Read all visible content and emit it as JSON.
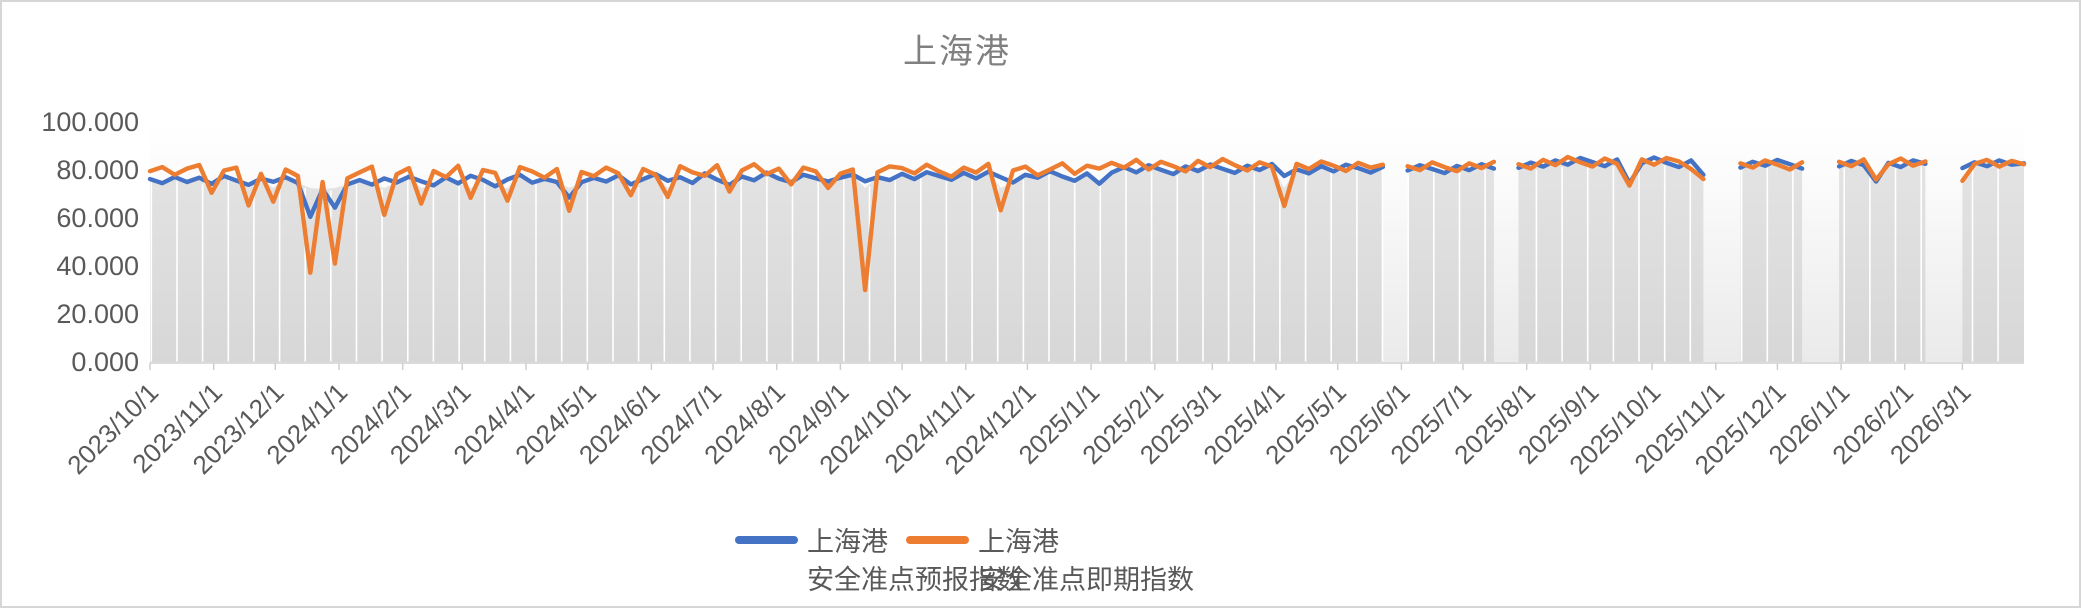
{
  "title": "上海港",
  "colors": {
    "series_forecast": "#4472C4",
    "series_spot": "#ED7D31",
    "area_top": "#E3E3E3",
    "area_bottom": "#D7D7D7",
    "plot_bg_top": "#FFFFFF",
    "plot_bg_bottom": "#EAEAEA",
    "axis_text": "#595959",
    "title_text": "#808080",
    "axis_line": "#CFCFCF",
    "gridline": "#FFFFFF"
  },
  "legend": [
    {
      "label_line1": "上海港",
      "label_line2": "安全准点预报指数",
      "color": "#4472C4"
    },
    {
      "label_line1": "上海港",
      "label_line2": "安全准点即期指数",
      "color": "#ED7D31"
    }
  ],
  "chart_data": {
    "type": "line",
    "title": "上海港",
    "xlabel": "",
    "ylabel": "",
    "ylim": [
      0,
      100
    ],
    "grid": "vertical-white-on-area",
    "legend_position": "bottom-center",
    "y_tick_values": [
      0,
      20,
      40,
      60,
      80,
      100
    ],
    "y_tick_labels": [
      "0.000",
      "20.000",
      "40.000",
      "60.000",
      "80.000",
      "100.000"
    ],
    "x_start_date": "2023/10/1",
    "x_total_days": 912,
    "x_step_days": 6,
    "x_tick_labels": [
      "2023/10/1",
      "2023/11/1",
      "2023/12/1",
      "2024/1/1",
      "2024/2/1",
      "2024/3/1",
      "2024/4/1",
      "2024/5/1",
      "2024/6/1",
      "2024/7/1",
      "2024/8/1",
      "2024/9/1",
      "2024/10/1",
      "2024/11/1",
      "2024/12/1",
      "2025/1/1",
      "2025/2/1",
      "2025/3/1",
      "2025/4/1",
      "2025/5/1",
      "2025/6/1",
      "2025/7/1",
      "2025/8/1",
      "2025/9/1",
      "2025/10/1",
      "2025/11/1",
      "2025/12/1",
      "2026/1/1",
      "2026/2/1",
      "2026/3/1"
    ],
    "x_tick_day_offsets": [
      0,
      31,
      61,
      92,
      123,
      152,
      183,
      213,
      244,
      274,
      305,
      336,
      366,
      397,
      427,
      458,
      489,
      517,
      548,
      578,
      609,
      639,
      670,
      701,
      731,
      762,
      792,
      823,
      854,
      882
    ],
    "series": [
      {
        "name": "上海港 安全准点预报指数",
        "color": "#4472C4",
        "values": [
          76.2,
          74.5,
          77.1,
          75.0,
          76.8,
          74.2,
          77.5,
          75.6,
          73.8,
          76.4,
          75.1,
          77.0,
          74.6,
          60.5,
          72.0,
          64.3,
          74.0,
          75.8,
          73.9,
          76.5,
          74.8,
          77.2,
          75.3,
          73.6,
          76.9,
          74.4,
          77.6,
          75.9,
          73.2,
          76.1,
          78.0,
          74.7,
          76.3,
          75.0,
          68.5,
          74.9,
          76.7,
          75.2,
          77.8,
          74.0,
          76.2,
          78.3,
          75.5,
          77.0,
          74.6,
          78.6,
          76.0,
          73.8,
          77.3,
          75.7,
          78.9,
          76.4,
          74.9,
          78.0,
          76.6,
          75.2,
          76.8,
          78.1,
          75.3,
          77.0,
          75.8,
          78.4,
          76.2,
          79.1,
          77.5,
          75.9,
          78.8,
          76.5,
          79.3,
          77.0,
          74.8,
          78.0,
          76.8,
          79.5,
          77.3,
          75.5,
          78.6,
          74.3,
          78.9,
          81.2,
          79.0,
          82.0,
          80.1,
          78.3,
          81.5,
          79.6,
          82.3,
          80.5,
          78.8,
          81.8,
          80.0,
          82.5,
          77.5,
          80.3,
          78.6,
          81.6,
          79.4,
          82.2,
          80.8,
          78.9,
          81.3,
          null,
          79.8,
          82.0,
          80.4,
          78.7,
          81.7,
          79.9,
          82.4,
          80.6,
          null,
          80.9,
          83.1,
          81.4,
          84.0,
          82.2,
          85.0,
          83.3,
          81.6,
          84.4,
          74.5,
          82.8,
          85.2,
          83.0,
          81.2,
          84.0,
          78.0,
          null,
          null,
          81.0,
          83.4,
          81.8,
          84.2,
          82.4,
          80.6,
          null,
          null,
          81.5,
          83.8,
          82.0,
          75.2,
          83.0,
          81.2,
          84.0,
          82.6,
          null,
          null,
          80.8,
          83.2,
          81.6,
          84.0,
          82.2,
          82.8
        ]
      },
      {
        "name": "上海港 安全准点即期指数",
        "color": "#ED7D31",
        "values": [
          79.5,
          81.2,
          78.0,
          80.6,
          82.1,
          70.5,
          79.8,
          81.0,
          65.2,
          78.4,
          66.8,
          80.2,
          77.5,
          37.2,
          75.0,
          41.0,
          76.5,
          79.0,
          81.4,
          61.3,
          78.2,
          80.8,
          66.0,
          79.6,
          77.0,
          81.8,
          68.4,
          80.0,
          78.8,
          67.2,
          81.2,
          79.4,
          76.8,
          80.4,
          63.0,
          79.2,
          77.4,
          81.0,
          78.6,
          69.5,
          80.4,
          78.0,
          68.8,
          81.6,
          79.0,
          77.6,
          82.0,
          71.0,
          79.8,
          82.4,
          78.2,
          80.6,
          74.0,
          81.0,
          79.4,
          72.5,
          78.5,
          80.2,
          30.0,
          79.0,
          81.5,
          80.8,
          78.6,
          82.2,
          79.4,
          77.2,
          81.0,
          78.9,
          82.6,
          63.2,
          79.8,
          81.4,
          77.8,
          80.2,
          82.8,
          78.4,
          81.8,
          80.6,
          83.0,
          81.0,
          84.2,
          80.2,
          83.4,
          81.6,
          79.4,
          83.8,
          81.2,
          84.6,
          82.0,
          79.8,
          83.2,
          81.4,
          65.0,
          82.6,
          80.4,
          83.6,
          81.8,
          79.6,
          83.0,
          81.0,
          82.2,
          null,
          81.6,
          79.9,
          83.2,
          81.2,
          79.5,
          82.8,
          80.8,
          83.4,
          null,
          82.4,
          80.6,
          84.2,
          82.0,
          85.4,
          83.2,
          81.4,
          84.8,
          82.6,
          73.5,
          84.4,
          82.2,
          85.0,
          83.6,
          80.4,
          76.2,
          null,
          null,
          82.8,
          81.0,
          84.0,
          82.2,
          80.2,
          83.2,
          null,
          null,
          83.4,
          81.6,
          84.4,
          76.0,
          82.4,
          84.8,
          81.8,
          83.6,
          null,
          null,
          75.5,
          82.6,
          84.2,
          81.4,
          83.8,
          82.4
        ]
      }
    ],
    "data_gaps_day_ranges": [
      [
        603,
        611
      ],
      [
        657,
        663
      ],
      [
        759,
        771
      ],
      [
        807,
        819
      ],
      [
        867,
        879
      ]
    ]
  }
}
